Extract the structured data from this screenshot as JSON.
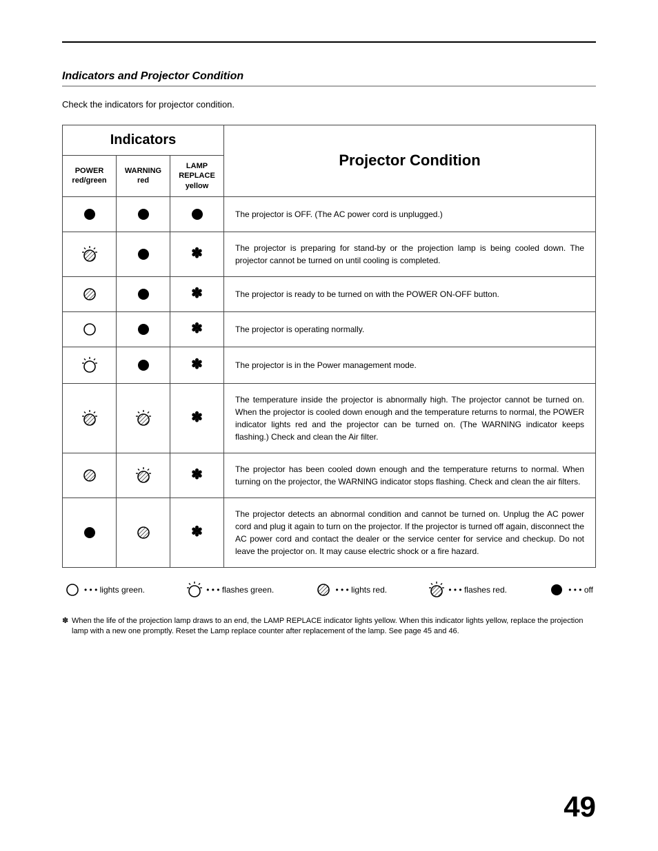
{
  "page": {
    "section_title": "Indicators and Projector Condition",
    "intro": "Check the indicators for projector condition.",
    "page_number": "49"
  },
  "table": {
    "indicators_header": "Indicators",
    "condition_header": "Projector Condition",
    "columns": [
      {
        "line1": "POWER",
        "line2": "red/green"
      },
      {
        "line1": "WARNING",
        "line2": "red"
      },
      {
        "line1": "LAMP REPLACE",
        "line2": "yellow"
      }
    ],
    "rows": [
      {
        "power": "off",
        "warning": "off",
        "lamp": "off",
        "desc": "The projector is OFF.  (The AC power cord is unplugged.)"
      },
      {
        "power": "flash-red",
        "warning": "off",
        "lamp": "ast",
        "desc": "The projector is preparing for stand-by or the projection lamp is being cooled down.  The projector cannot be turned on until cooling is completed."
      },
      {
        "power": "red",
        "warning": "off",
        "lamp": "ast",
        "desc": "The projector is ready to be turned on with the POWER ON-OFF button."
      },
      {
        "power": "green",
        "warning": "off",
        "lamp": "ast",
        "desc": "The projector is operating normally."
      },
      {
        "power": "flash-green",
        "warning": "off",
        "lamp": "ast",
        "desc": "The projector is in the Power management mode."
      },
      {
        "power": "flash-red",
        "warning": "flash-red",
        "lamp": "ast",
        "desc": "The temperature inside the projector is abnormally high.  The projector cannot be turned on.  When  the projector is cooled down enough and the temperature returns to normal, the POWER indicator lights red and the projector can be turned on.  (The WARNING indicator keeps flashing.)  Check and clean the Air filter."
      },
      {
        "power": "red",
        "warning": "flash-red",
        "lamp": "ast",
        "desc": "The projector has been cooled down enough and the temperature returns to normal.  When turning on the projector, the WARNING indicator stops flashing.  Check and clean the air filters."
      },
      {
        "power": "off",
        "warning": "red",
        "lamp": "ast",
        "desc": "The projector detects an abnormal condition and cannot be turned on.  Unplug the AC power cord and plug it again to turn on the projector.  If the projector is turned off again, disconnect the AC power cord and contact the dealer or the service center for service and checkup.  Do not leave the projector on.  It may cause electric shock or a fire hazard."
      }
    ]
  },
  "legend": {
    "green": "lights green.",
    "flash_green": "flashes green.",
    "red": "lights red.",
    "flash_red": "flashes red.",
    "off": "off"
  },
  "footnote": "When the life of the projection lamp draws to an end, the LAMP REPLACE indicator lights yellow.  When this indicator lights yellow, replace the projection lamp with a new one promptly.  Reset the Lamp replace counter after replacement of the lamp.  See page 45 and 46.",
  "style": {
    "colors": {
      "text": "#000000",
      "border": "#444444",
      "underline": "#aaaaaa",
      "background": "#ffffff"
    },
    "fonts": {
      "body_size": 13,
      "table_desc_size": 12,
      "header_size": 22,
      "page_num_size": 42
    }
  }
}
